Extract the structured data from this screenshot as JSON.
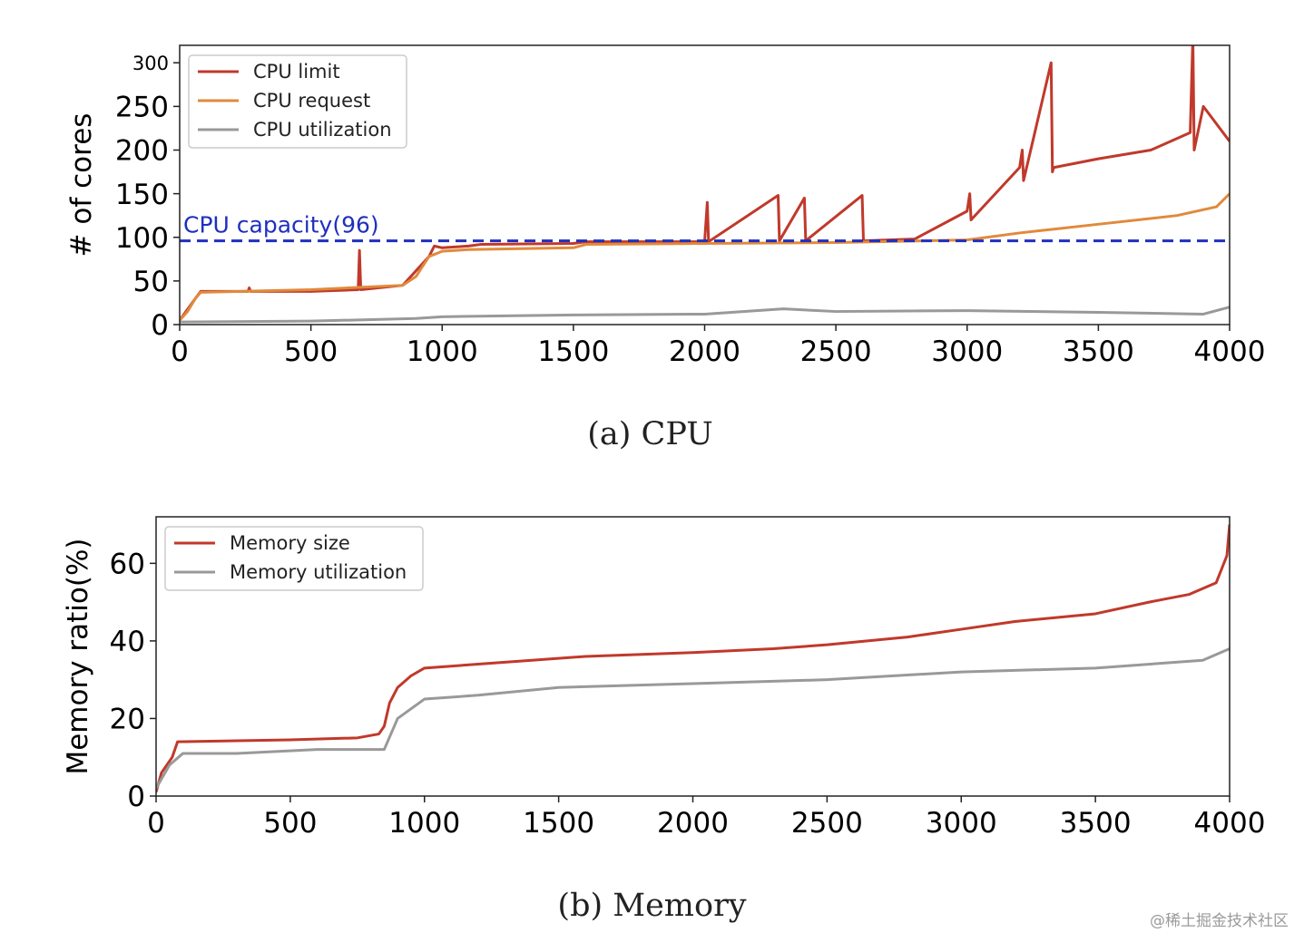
{
  "watermark": "@稀土掘金技术社区",
  "chart_data": [
    {
      "type": "line",
      "caption": "(a)  CPU",
      "title": "",
      "xlabel": "",
      "ylabel": "# of cores",
      "xlim": [
        0,
        4000
      ],
      "ylim": [
        0,
        320
      ],
      "xticks": [
        0,
        500,
        1000,
        1500,
        2000,
        2500,
        3000,
        3500,
        4000
      ],
      "yticks": [
        0,
        50,
        100,
        150,
        200,
        250,
        300
      ],
      "grid": false,
      "legend_position": "top-left",
      "reference_line": {
        "label": "CPU capacity(96)",
        "y": 96,
        "color": "#1f2fbf",
        "style": "dashed"
      },
      "series": [
        {
          "name": "CPU limit",
          "color": "#c0392b",
          "x": [
            0,
            60,
            80,
            260,
            265,
            270,
            500,
            680,
            685,
            690,
            850,
            950,
            970,
            1000,
            1100,
            1150,
            1500,
            1550,
            2000,
            2010,
            2015,
            2280,
            2285,
            2380,
            2385,
            2600,
            2605,
            2800,
            3000,
            3010,
            3015,
            3200,
            3210,
            3215,
            3320,
            3325,
            3330,
            3500,
            3700,
            3850,
            3860,
            3865,
            3900,
            4000
          ],
          "values": [
            5,
            30,
            38,
            38,
            42,
            38,
            38,
            40,
            85,
            40,
            45,
            78,
            90,
            88,
            90,
            92,
            93,
            95,
            95,
            140,
            95,
            148,
            96,
            145,
            96,
            148,
            96,
            98,
            130,
            150,
            120,
            180,
            200,
            165,
            300,
            175,
            180,
            190,
            200,
            220,
            330,
            200,
            250,
            210
          ]
        },
        {
          "name": "CPU request",
          "color": "#e08a3c",
          "x": [
            0,
            30,
            60,
            80,
            500,
            850,
            900,
            950,
            1000,
            1100,
            1500,
            1550,
            2000,
            2500,
            3000,
            3200,
            3500,
            3800,
            3950,
            4000
          ],
          "values": [
            5,
            15,
            30,
            37,
            40,
            45,
            55,
            78,
            84,
            86,
            88,
            92,
            93,
            94,
            97,
            105,
            115,
            125,
            135,
            150
          ]
        },
        {
          "name": "CPU utilization",
          "color": "#999999",
          "x": [
            0,
            500,
            900,
            1000,
            1500,
            2000,
            2300,
            2500,
            3000,
            3500,
            3900,
            4000
          ],
          "values": [
            3,
            4,
            7,
            9,
            11,
            12,
            18,
            15,
            16,
            14,
            12,
            20
          ]
        }
      ]
    },
    {
      "type": "line",
      "caption": "(b)  Memory",
      "title": "",
      "xlabel": "",
      "ylabel": "Memory ratio(%)",
      "xlim": [
        0,
        4000
      ],
      "ylim": [
        0,
        72
      ],
      "xticks": [
        0,
        500,
        1000,
        1500,
        2000,
        2500,
        3000,
        3500,
        4000
      ],
      "yticks": [
        0,
        20,
        40,
        60
      ],
      "grid": false,
      "legend_position": "top-left",
      "series": [
        {
          "name": "Memory size",
          "color": "#c0392b",
          "x": [
            0,
            20,
            60,
            80,
            500,
            750,
            830,
            850,
            870,
            900,
            950,
            1000,
            1200,
            1400,
            1600,
            2000,
            2300,
            2500,
            2800,
            3000,
            3200,
            3500,
            3700,
            3850,
            3950,
            3990,
            4000
          ],
          "values": [
            1,
            6,
            10,
            14,
            14.5,
            15,
            16,
            18,
            24,
            28,
            31,
            33,
            34,
            35,
            36,
            37,
            38,
            39,
            41,
            43,
            45,
            47,
            50,
            52,
            55,
            62,
            70
          ]
        },
        {
          "name": "Memory utilization",
          "color": "#999999",
          "x": [
            0,
            50,
            100,
            300,
            600,
            850,
            900,
            1000,
            1200,
            1500,
            2000,
            2500,
            3000,
            3500,
            3900,
            4000
          ],
          "values": [
            2,
            8,
            11,
            11,
            12,
            12,
            20,
            25,
            26,
            28,
            29,
            30,
            32,
            33,
            35,
            38
          ]
        }
      ]
    }
  ]
}
